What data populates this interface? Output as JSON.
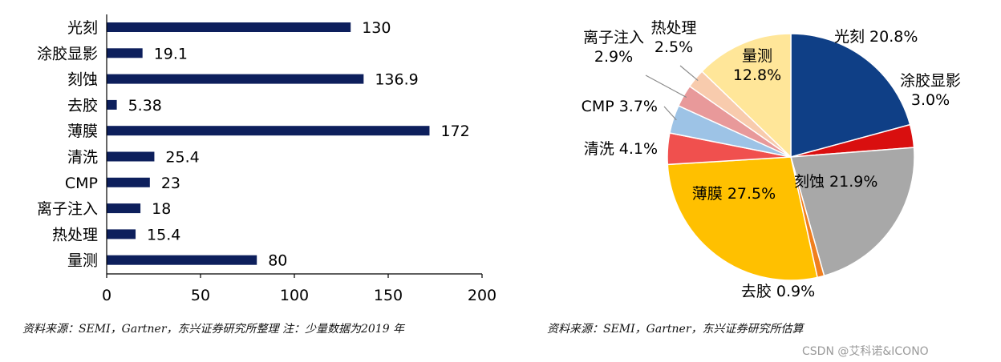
{
  "chart_data": [
    {
      "type": "bar",
      "orientation": "horizontal",
      "categories": [
        "光刻",
        "涂胶显影",
        "刻蚀",
        "去胶",
        "薄膜",
        "清洗",
        "CMP",
        "离子注入",
        "热处理",
        "量测"
      ],
      "values": [
        130,
        19.1,
        136.9,
        5.38,
        172,
        25.4,
        23,
        18,
        15.4,
        80
      ],
      "value_labels": [
        "130",
        "19.1",
        "136.9",
        "5.38",
        "172",
        "25.4",
        "23",
        "18",
        "15.4",
        "80"
      ],
      "xlim": [
        0,
        200
      ],
      "xticks": [
        "0",
        "50",
        "100",
        "150",
        "200"
      ],
      "bar_color": "#0d1f5c",
      "title": "",
      "xlabel": "",
      "ylabel": ""
    },
    {
      "type": "pie",
      "slices": [
        {
          "label": "光刻",
          "pct": "20.8%",
          "value": 20.8,
          "color": "#0f3f86"
        },
        {
          "label": "涂胶显影",
          "pct": "3.0%",
          "value": 3.0,
          "color": "#d90f0f"
        },
        {
          "label": "刻蚀",
          "pct": "21.9%",
          "value": 21.9,
          "color": "#a8a8a8"
        },
        {
          "label": "去胶",
          "pct": "0.9%",
          "value": 0.9,
          "color": "#f07f1f"
        },
        {
          "label": "薄膜",
          "pct": "27.5%",
          "value": 27.5,
          "color": "#ffc000"
        },
        {
          "label": "清洗",
          "pct": "4.1%",
          "value": 4.1,
          "color": "#f0504e"
        },
        {
          "label": "CMP",
          "pct": "3.7%",
          "value": 3.7,
          "color": "#9dc3e6"
        },
        {
          "label": "离子注入",
          "pct": "2.9%",
          "value": 2.9,
          "color": "#e8999a"
        },
        {
          "label": "热处理",
          "pct": "2.5%",
          "value": 2.5,
          "color": "#f8cbad"
        },
        {
          "label": "量测",
          "pct": "12.8%",
          "value": 12.8,
          "color": "#ffe699"
        }
      ]
    }
  ],
  "sources": {
    "left": "资料来源：SEMI，Gartner，东兴证券研究所整理 注：少量数据为2019 年",
    "right": "资料来源：SEMI，Gartner，东兴证券研究所估算"
  },
  "watermark": "CSDN @艾科诺&ICONO"
}
